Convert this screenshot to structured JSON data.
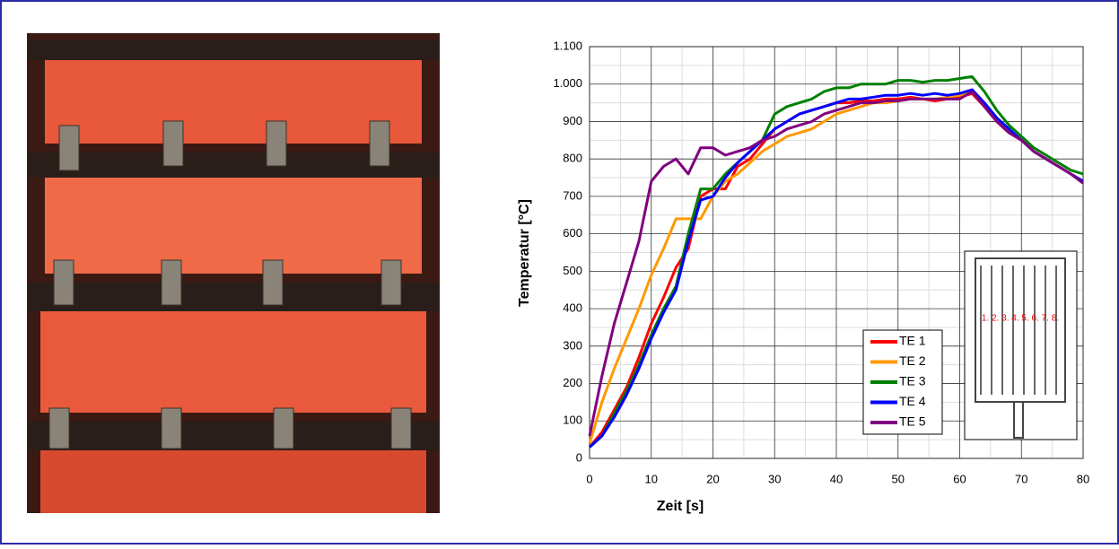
{
  "chart_data": {
    "type": "line",
    "x_label": "Zeit [s]",
    "y_label": "Temperatur [°C]",
    "x": [
      0,
      2,
      4,
      6,
      8,
      10,
      12,
      14,
      16,
      18,
      20,
      22,
      24,
      26,
      28,
      30,
      32,
      34,
      36,
      38,
      40,
      42,
      44,
      46,
      48,
      50,
      52,
      54,
      56,
      58,
      60,
      62,
      64,
      66,
      68,
      70,
      72,
      74,
      76,
      78,
      80
    ],
    "series": [
      {
        "name": "TE 1",
        "color": "#ff0000",
        "values": [
          30,
          70,
          130,
          190,
          270,
          360,
          430,
          510,
          560,
          700,
          720,
          720,
          780,
          800,
          840,
          880,
          900,
          920,
          930,
          940,
          950,
          950,
          955,
          955,
          960,
          960,
          965,
          960,
          955,
          960,
          965,
          975,
          940,
          900,
          870,
          850,
          820,
          800,
          780,
          760,
          740
        ]
      },
      {
        "name": "TE 2",
        "color": "#ff9900",
        "values": [
          40,
          150,
          240,
          320,
          400,
          490,
          560,
          640,
          640,
          640,
          700,
          740,
          760,
          790,
          820,
          840,
          860,
          870,
          880,
          900,
          920,
          930,
          940,
          950,
          950,
          955,
          960,
          960,
          960,
          965,
          970,
          980,
          940,
          900,
          870,
          850,
          820,
          800,
          780,
          760,
          740
        ]
      },
      {
        "name": "TE 3",
        "color": "#008000",
        "values": [
          30,
          60,
          120,
          180,
          250,
          330,
          400,
          460,
          600,
          720,
          720,
          760,
          790,
          820,
          850,
          920,
          940,
          950,
          960,
          980,
          990,
          990,
          1000,
          1000,
          1000,
          1010,
          1010,
          1005,
          1010,
          1010,
          1015,
          1020,
          980,
          930,
          890,
          860,
          830,
          810,
          790,
          770,
          760
        ]
      },
      {
        "name": "TE 4",
        "color": "#0000ff",
        "values": [
          30,
          60,
          110,
          170,
          240,
          320,
          390,
          450,
          580,
          690,
          700,
          750,
          790,
          820,
          850,
          880,
          900,
          920,
          930,
          940,
          950,
          960,
          960,
          965,
          970,
          970,
          975,
          970,
          975,
          970,
          975,
          985,
          950,
          910,
          880,
          850,
          820,
          800,
          780,
          760,
          740
        ]
      },
      {
        "name": "TE 5",
        "color": "#800080",
        "values": [
          60,
          220,
          360,
          470,
          580,
          740,
          780,
          800,
          760,
          830,
          830,
          810,
          820,
          830,
          850,
          860,
          880,
          890,
          900,
          920,
          930,
          940,
          950,
          950,
          955,
          955,
          960,
          960,
          960,
          960,
          960,
          980,
          940,
          900,
          870,
          850,
          820,
          800,
          780,
          760,
          735
        ]
      }
    ],
    "xlim": [
      0,
      80
    ],
    "xticks": [
      0,
      10,
      20,
      30,
      40,
      50,
      60,
      70,
      80
    ],
    "ylim": [
      0,
      1100
    ],
    "yticks": [
      0,
      100,
      200,
      300,
      400,
      500,
      600,
      700,
      800,
      900,
      {
        "value": 1000,
        "label": "1.000"
      },
      {
        "value": 1100,
        "label": "1.100"
      }
    ],
    "grid": true,
    "legend": "lower-right",
    "inset_label": "1. 2. 3. 4. 5. 6. 7. 8."
  }
}
